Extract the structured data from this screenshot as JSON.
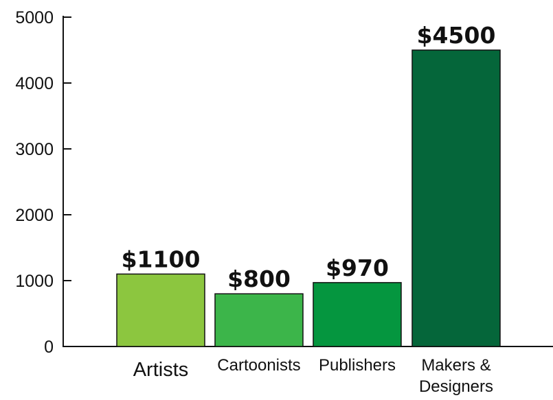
{
  "chart_data": {
    "type": "bar",
    "categories": [
      [
        "Artists"
      ],
      [
        "Cartoonists"
      ],
      [
        "Publishers"
      ],
      [
        "Makers &",
        "Designers"
      ]
    ],
    "values": [
      1100,
      800,
      970,
      4500
    ],
    "data_labels": [
      "$1100",
      "$800",
      "$970",
      "$4500"
    ],
    "bar_colors": [
      "#8cc63f",
      "#3cb54a",
      "#05963f",
      "#05663a"
    ],
    "yticks": [
      "0",
      "1000",
      "2000",
      "3000",
      "4000",
      "5000"
    ],
    "ylim": [
      0,
      5000
    ],
    "grid": false,
    "legend": "none",
    "title": "",
    "xlabel": "",
    "ylabel": ""
  }
}
